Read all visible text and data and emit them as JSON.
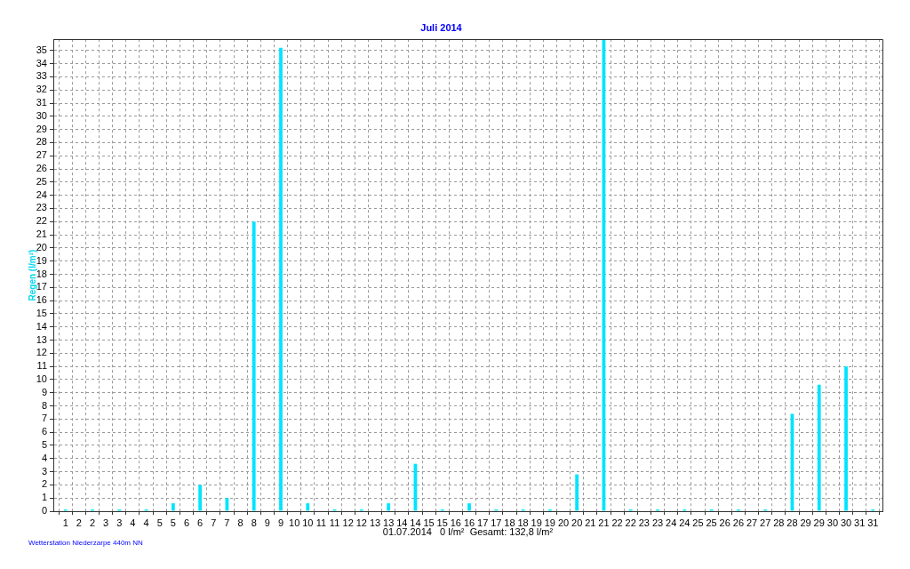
{
  "chart_data": {
    "type": "bar",
    "title": "Juli 2014",
    "ylabel": "Regen (l/m²)",
    "x": [
      1,
      2,
      3,
      4,
      5,
      6,
      7,
      8,
      9,
      10,
      11,
      12,
      13,
      14,
      15,
      16,
      17,
      18,
      19,
      20,
      21,
      22,
      23,
      24,
      25,
      26,
      27,
      28,
      29,
      30,
      31
    ],
    "values": [
      0,
      0,
      0,
      0,
      0.6,
      2.0,
      1.0,
      22.0,
      35.2,
      0.6,
      0,
      0,
      0.6,
      3.6,
      0,
      0.6,
      0,
      0,
      0,
      2.8,
      35.8,
      0,
      0,
      0,
      0,
      0,
      0,
      7.4,
      9.6,
      11.0,
      0
    ],
    "color": "#00e4ff",
    "xlim": [
      0.8,
      31.1
    ],
    "xticks": [
      1,
      {
        "value": 1.5,
        "label": "2"
      },
      2,
      {
        "value": 2.5,
        "label": "3"
      },
      3,
      {
        "value": 3.5,
        "label": "4"
      },
      4,
      {
        "value": 4.5,
        "label": "5"
      },
      5,
      {
        "value": 5.5,
        "label": "6"
      },
      6,
      {
        "value": 6.5,
        "label": "7"
      },
      7,
      {
        "value": 7.5,
        "label": "8"
      },
      8,
      {
        "value": 8.5,
        "label": "9"
      },
      9,
      {
        "value": 9.5,
        "label": "10"
      },
      10,
      {
        "value": 10.5,
        "label": "11"
      },
      11,
      {
        "value": 11.5,
        "label": "12"
      },
      12,
      {
        "value": 12.5,
        "label": "13"
      },
      13,
      {
        "value": 13.5,
        "label": "14"
      },
      14,
      {
        "value": 14.5,
        "label": "15"
      },
      15,
      {
        "value": 15.5,
        "label": "16"
      },
      16,
      {
        "value": 16.5,
        "label": "17"
      },
      17,
      {
        "value": 17.5,
        "label": "18"
      },
      18,
      {
        "value": 18.5,
        "label": "19"
      },
      19,
      {
        "value": 19.5,
        "label": "20"
      },
      20,
      {
        "value": 20.5,
        "label": "21"
      },
      21,
      {
        "value": 21.5,
        "label": "22"
      },
      22,
      {
        "value": 22.5,
        "label": "23"
      },
      23,
      {
        "value": 23.5,
        "label": "24"
      },
      24,
      {
        "value": 24.5,
        "label": "25"
      },
      25,
      {
        "value": 25.5,
        "label": "26"
      },
      26,
      {
        "value": 26.5,
        "label": "27"
      },
      27,
      {
        "value": 27.5,
        "label": "28"
      },
      28,
      {
        "value": 28.5,
        "label": "29"
      },
      29,
      {
        "value": 29.5,
        "label": "30"
      },
      30,
      {
        "value": 30.5,
        "label": "31"
      },
      31
    ],
    "ylim": [
      0,
      35.85
    ],
    "yticks": [
      0,
      1,
      2,
      3,
      4,
      5,
      6,
      7,
      8,
      9,
      10,
      11,
      12,
      13,
      14,
      15,
      16,
      17,
      18,
      19,
      20,
      21,
      22,
      23,
      24,
      25,
      26,
      27,
      28,
      29,
      30,
      31,
      32,
      33,
      34,
      35
    ],
    "grid": true,
    "annotations": [
      "01.07.2014   0 l/m²  Gesamt: 132,8 l/m²",
      "Wetterstation Niederzarpe 440m NN"
    ]
  }
}
